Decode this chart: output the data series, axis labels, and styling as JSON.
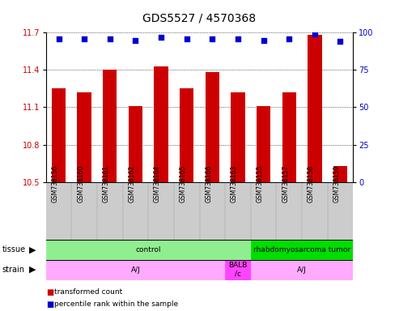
{
  "title": "GDS5527 / 4570368",
  "samples": [
    "GSM738156",
    "GSM738160",
    "GSM738161",
    "GSM738162",
    "GSM738164",
    "GSM738165",
    "GSM738166",
    "GSM738163",
    "GSM738155",
    "GSM738157",
    "GSM738158",
    "GSM738159"
  ],
  "transformed_count": [
    11.25,
    11.22,
    11.4,
    11.11,
    11.43,
    11.25,
    11.38,
    11.22,
    11.11,
    11.22,
    11.68,
    10.63
  ],
  "percentile_rank": [
    96,
    96,
    96,
    95,
    97,
    96,
    96,
    96,
    95,
    96,
    99,
    94
  ],
  "ylim_left": [
    10.5,
    11.7
  ],
  "ylim_right": [
    0,
    100
  ],
  "yticks_left": [
    10.5,
    10.8,
    11.1,
    11.4,
    11.7
  ],
  "yticks_right": [
    0,
    25,
    50,
    75,
    100
  ],
  "bar_color": "#CC0000",
  "dot_color": "#0000CC",
  "bar_bottom": 10.5,
  "tissue_groups": [
    {
      "label": "control",
      "start": 0,
      "end": 8,
      "color": "#90EE90"
    },
    {
      "label": "rhabdomyosarcoma tumor",
      "start": 8,
      "end": 12,
      "color": "#00DD00"
    }
  ],
  "strain_groups": [
    {
      "label": "A/J",
      "start": 0,
      "end": 7,
      "color": "#FFAAFF"
    },
    {
      "label": "BALB\n/c",
      "start": 7,
      "end": 8,
      "color": "#FF44FF"
    },
    {
      "label": "A/J",
      "start": 8,
      "end": 12,
      "color": "#FFAAFF"
    }
  ],
  "legend_items": [
    {
      "label": "transformed count",
      "color": "#CC0000"
    },
    {
      "label": "percentile rank within the sample",
      "color": "#0000CC"
    }
  ],
  "title_fontsize": 10,
  "tick_fontsize": 7,
  "label_fontsize": 5.5,
  "row_fontsize": 7,
  "legend_fontsize": 6.5
}
